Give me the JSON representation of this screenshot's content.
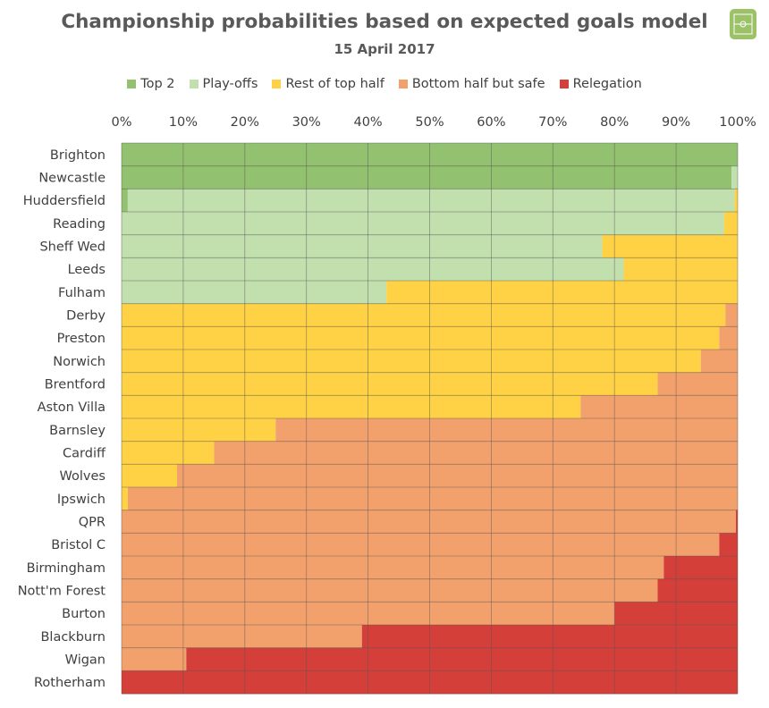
{
  "chart_data": {
    "type": "bar",
    "orientation": "horizontal",
    "stacked": true,
    "title": "Championship probabilities based on expected goals model",
    "subtitle": "15 April 2017",
    "xlim": [
      0,
      100
    ],
    "x_ticks": [
      "0%",
      "10%",
      "20%",
      "30%",
      "40%",
      "50%",
      "60%",
      "70%",
      "80%",
      "90%",
      "100%"
    ],
    "grid": true,
    "legend_position": "top",
    "categories": [
      "Brighton",
      "Newcastle",
      "Huddersfield",
      "Reading",
      "Sheff Wed",
      "Leeds",
      "Fulham",
      "Derby",
      "Preston",
      "Norwich",
      "Brentford",
      "Aston Villa",
      "Barnsley",
      "Cardiff",
      "Wolves",
      "Ipswich",
      "QPR",
      "Bristol C",
      "Birmingham",
      "Nott'm Forest",
      "Burton",
      "Blackburn",
      "Wigan",
      "Rotherham"
    ],
    "series": [
      {
        "name": "Top 2",
        "color": "#92c16f",
        "values": [
          100,
          99,
          1,
          0,
          0,
          0,
          0,
          0,
          0,
          0,
          0,
          0,
          0,
          0,
          0,
          0,
          0,
          0,
          0,
          0,
          0,
          0,
          0,
          0
        ]
      },
      {
        "name": "Play-offs",
        "color": "#c2dfae",
        "values": [
          0,
          1,
          98.5,
          97.8,
          78,
          81.5,
          43,
          0,
          0,
          0,
          0,
          0,
          0,
          0,
          0,
          0,
          0,
          0,
          0,
          0,
          0,
          0,
          0,
          0
        ]
      },
      {
        "name": "Rest of top half",
        "color": "#ffd144",
        "values": [
          0,
          0,
          0.5,
          2.2,
          22,
          18.5,
          57,
          98,
          97,
          94,
          87,
          74.5,
          25,
          15,
          9,
          1,
          0,
          0,
          0,
          0,
          0,
          0,
          0,
          0
        ]
      },
      {
        "name": "Bottom half but safe",
        "color": "#f3a16c",
        "values": [
          0,
          0,
          0,
          0,
          0,
          0,
          0,
          2,
          3,
          6,
          13,
          25.5,
          75,
          85,
          91,
          99,
          99.7,
          97,
          88,
          87,
          80,
          39,
          10.5,
          0
        ]
      },
      {
        "name": "Relegation",
        "color": "#d43f3a",
        "values": [
          0,
          0,
          0,
          0,
          0,
          0,
          0,
          0,
          0,
          0,
          0,
          0,
          0,
          0,
          0,
          0,
          0.3,
          3,
          12,
          13,
          20,
          61,
          89.5,
          100
        ]
      }
    ]
  }
}
